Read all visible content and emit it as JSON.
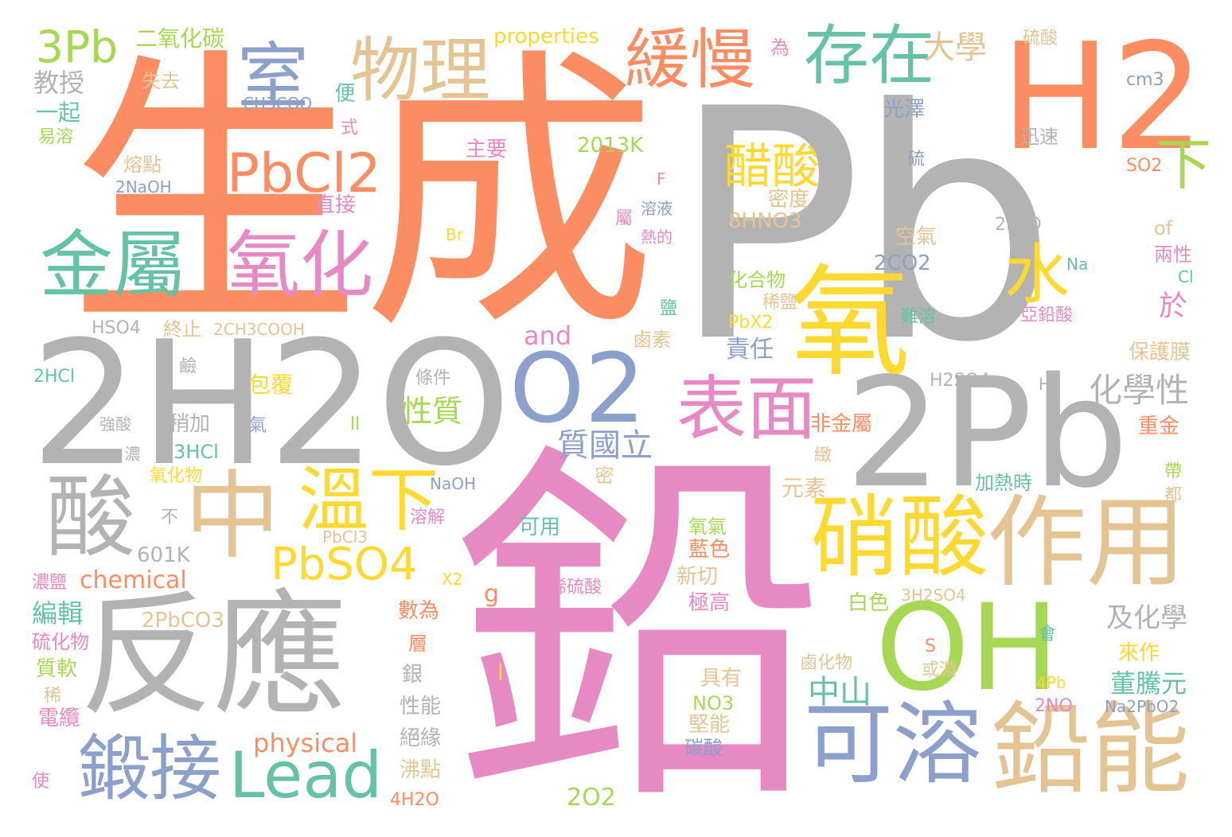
{
  "palette": {
    "orange": "#fc8d62",
    "gray": "#b3b3b3",
    "pink": "#e78ac3",
    "blue": "#8da0cb",
    "green": "#66c2a5",
    "yellow": "#ffd92f",
    "tan": "#e5c494",
    "lime": "#a6d854"
  },
  "words": {
    "Pb": "Pb",
    "生成": "生成",
    "鉛": "鉛",
    "2H2O": "2H2O",
    "反應": "反應",
    "2Pb": "2Pb",
    "H2": "H2",
    "OH": "OH",
    "氧": "氧",
    "O2": "O2",
    "硝酸": "硝酸",
    "作用": "作用",
    "鉛能": "鉛能",
    "可溶": "可溶",
    "金屬": "金屬",
    "氧化": "氧化",
    "中": "中",
    "酸": "酸",
    "溫下": "溫下",
    "鍛接": "鍛接",
    "Lead": "Lead",
    "物理": "物理",
    "緩慢": "緩慢",
    "存在": "存在",
    "室": "室",
    "PbCl2": "PbCl2",
    "表面": "表面",
    "醋酸": "醋酸",
    "水": "水",
    "PbSO4": "PbSO4",
    "3Pb": "3Pb",
    "二氧化碳": "二氧化碳",
    "教授": "教授",
    "一起": "一起",
    "易溶": "易溶",
    "失去": "失去",
    "CH3COO": "CH3COO",
    "便": "便",
    "式": "式",
    "熔點": "熔點",
    "2NaOH": "2NaOH",
    "主要": "主要",
    "直接": "直接",
    "2013K": "2013K",
    "properties": "properties",
    "大學": "大學",
    "為": "為",
    "硫酸": "硫酸",
    "cm3": "cm3",
    "光澤": "光澤",
    "迅速": "迅速",
    "硫": "硫",
    "SO2": "SO2",
    "下": "下",
    "密度": "密度",
    "8HNO3": "8HNO3",
    "F": "F",
    "溶液": "溶液",
    "熱的": "熱的",
    "屬": "屬",
    "Br": "Br",
    "空氣": "空氣",
    "2CO2": "2CO2",
    "化合物": "化合物",
    "稀鹽": "稀鹽",
    "難溶": "難溶",
    "PbX2": "PbX2",
    "責任": "責任",
    "鹽": "鹽",
    "鹵素": "鹵素",
    "2PbO": "2PbO",
    "Na": "Na",
    "of": "of",
    "兩性": "兩性",
    "Cl": "Cl",
    "亞鉛酸": "亞鉛酸",
    "於": "於",
    "化學性": "化學性",
    "保護膜": "保護膜",
    "H2SO4": "H2SO4",
    "H": "H",
    "重金": "重金",
    "帶": "帶",
    "都": "都",
    "HSO4": "HSO4",
    "終止": "終止",
    "2CH3COOH": "2CH3COOH",
    "and": "and",
    "鹼": "鹼",
    "2HCl": "2HCl",
    "包覆": "包覆",
    "條件": "條件",
    "性質": "性質",
    "強酸": "強酸",
    "稍加": "稍加",
    "氣": "氣",
    "ll": "ll",
    "3HCl": "3HCl",
    "濃": "濃",
    "質國立": "質國立",
    "非金屬": "非金屬",
    "緻": "緻",
    "氧化物": "氧化物",
    "NaOH": "NaOH",
    "密": "密",
    "不": "不",
    "溶解": "溶解",
    "元素": "元素",
    "加熱時": "加熱時",
    "PbCl3": "PbCl3",
    "可用": "可用",
    "氧氣": "氧氣",
    "藍色": "藍色",
    "601K": "601K",
    "新切": "新切",
    "chemical": "chemical",
    "X2": "X2",
    "稀硫酸": "稀硫酸",
    "濃鹽": "濃鹽",
    "g": "g",
    "極高": "極高",
    "白色": "白色",
    "3H2SO4": "3H2SO4",
    "及化學": "及化學",
    "編輯": "編輯",
    "2PbCO3": "2PbCO3",
    "數為": "數為",
    "硫化物": "硫化物",
    "質軟": "質軟",
    "層": "層",
    "稀": "稀",
    "銀": "銀",
    "電纜": "電纜",
    "性能": "性能",
    "具有": "具有",
    "鹵化物": "鹵化物",
    "S": "S",
    "或濃": "或濃",
    "會": "會",
    "來作": "來作",
    "中山": "中山",
    "董騰元": "董騰元",
    "4Pb": "4Pb",
    "2NO": "2NO",
    "Na2PbO2": "Na2PbO2",
    "NO3": "NO3",
    "堅能": "堅能",
    "碳酸": "碳酸",
    "physical": "physical",
    "絕緣": "絕緣",
    "沸點": "沸點",
    "4H2O": "4H2O",
    "2O2": "2O2",
    "使": "使",
    "l": "l"
  }
}
